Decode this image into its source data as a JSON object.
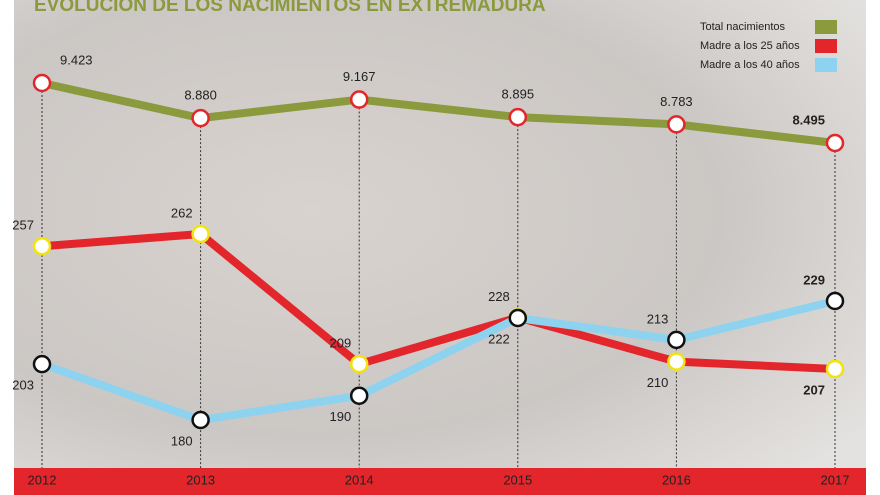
{
  "chart_data": {
    "type": "line",
    "title": "EVOLUCIÓN DE LOS NACIMIENTOS EN EXTREMADURA",
    "categories": [
      "2012",
      "2013",
      "2014",
      "2015",
      "2016",
      "2017"
    ],
    "series": [
      {
        "name": "Total nacimientos",
        "color": "#8a9a3c",
        "values": [
          9423,
          8880,
          9167,
          8895,
          8783,
          8495
        ],
        "value_labels": [
          "9.423",
          "8.880",
          "9.167",
          "8.895",
          "8.783",
          "8.495"
        ]
      },
      {
        "name": "Madre a los 25 años",
        "color": "#e3262b",
        "values": [
          257,
          262,
          209,
          228,
          210,
          207
        ]
      },
      {
        "name": "Madre a los 40 años",
        "color": "#8dd3f0",
        "values": [
          203,
          180,
          190,
          222,
          213,
          229
        ]
      }
    ]
  }
}
